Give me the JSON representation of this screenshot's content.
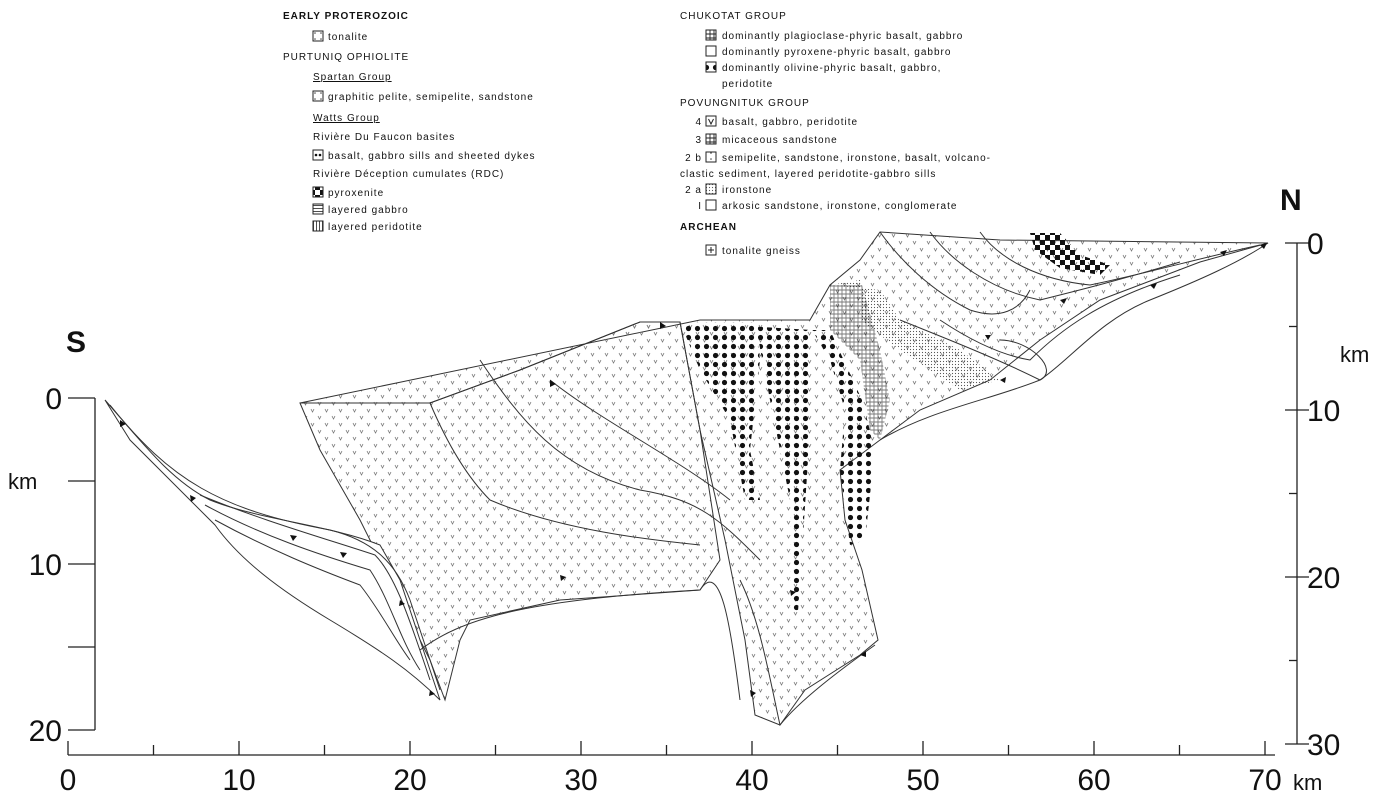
{
  "legend": {
    "left": [
      {
        "text": "EARLY PROTEROZOIC"
      },
      {
        "text": "tonalite"
      },
      {
        "text": "PURTUNIQ OPHIOLITE"
      },
      {
        "text": "Spartan Group"
      },
      {
        "text": "graphitic pelite, semipelite, sandstone"
      },
      {
        "text": "Watts Group"
      },
      {
        "text": "Rivière Du Faucon basites"
      },
      {
        "text": "basalt, gabbro sills and sheeted dykes"
      },
      {
        "text": "Rivière Déception cumulates (RDC)"
      },
      {
        "text": "pyroxenite"
      },
      {
        "text": "layered gabbro"
      },
      {
        "text": "layered peridotite"
      }
    ],
    "right": [
      {
        "text": "CHUKOTAT GROUP"
      },
      {
        "text": "dominantly plagioclase-phyric basalt, gabbro"
      },
      {
        "text": "dominantly pyroxene-phyric basalt, gabbro"
      },
      {
        "text": "dominantly olivine-phyric basalt, gabbro,"
      },
      {
        "text": "peridotite"
      },
      {
        "text": "POVUNGNITUK GROUP"
      },
      {
        "number": "4",
        "text": "basalt, gabbro, peridotite"
      },
      {
        "number": "3",
        "text": "micaceous sandstone"
      },
      {
        "number": "2 b",
        "text": "semipelite, sandstone, ironstone, basalt, volcano-"
      },
      {
        "text": "clastic sediment, layered peridotite-gabbro sills"
      },
      {
        "number": "2 a",
        "text": "ironstone"
      },
      {
        "number": "I",
        "text": "arkosic sandstone, ironstone, conglomerate"
      },
      {
        "text": "ARCHEAN"
      },
      {
        "text": "tonalite gneiss"
      }
    ]
  },
  "axes": {
    "bottom": {
      "ticks": [
        0,
        10,
        20,
        30,
        40,
        50,
        60,
        70
      ],
      "unit": "km"
    },
    "left": {
      "ticks": [
        0,
        10,
        20
      ],
      "unit": "km"
    },
    "right": {
      "ticks": [
        0,
        10,
        20,
        30
      ],
      "unit": "km"
    }
  },
  "labels": {
    "south": "S",
    "north": "N"
  }
}
